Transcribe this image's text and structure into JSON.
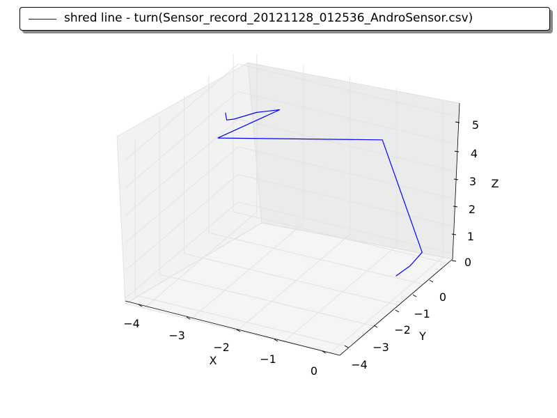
{
  "legend": {
    "label": "shred line - turn(Sensor_record_20121128_012536_AndroSensor.csv)",
    "line_color": "#0000ff"
  },
  "chart_data": {
    "type": "line",
    "projection": "3d",
    "xlabel": "X",
    "ylabel": "Y",
    "zlabel": "Z",
    "xlim": [
      -4.4,
      0.2
    ],
    "ylim": [
      -4.4,
      0.2
    ],
    "zlim": [
      -0.2,
      5.5
    ],
    "xticks": [
      "−4",
      "−3",
      "−2",
      "−1",
      "0"
    ],
    "yticks": [
      "−4",
      "−3",
      "−2",
      "−1",
      "0"
    ],
    "zticks": [
      "0",
      "1",
      "2",
      "3",
      "4",
      "5"
    ],
    "grid": true,
    "legend_position": "top",
    "series": [
      {
        "name": "shred line - turn(Sensor_record_20121128_012536_AndroSensor.csv)",
        "color": "#0000ff",
        "x": [
          -4.2,
          -4.25,
          -4.2,
          -3.9,
          -3.4,
          -4.1,
          -1.2,
          0.1,
          0.0,
          -0.2
        ],
        "y": [
          -0.7,
          -0.55,
          -0.35,
          0.0,
          0.0,
          -1.2,
          0.0,
          -0.85,
          -1.15,
          -1.35
        ],
        "z": [
          4.0,
          3.6,
          3.5,
          3.6,
          3.9,
          3.5,
          3.7,
          0.8,
          0.5,
          0.2
        ]
      }
    ]
  }
}
